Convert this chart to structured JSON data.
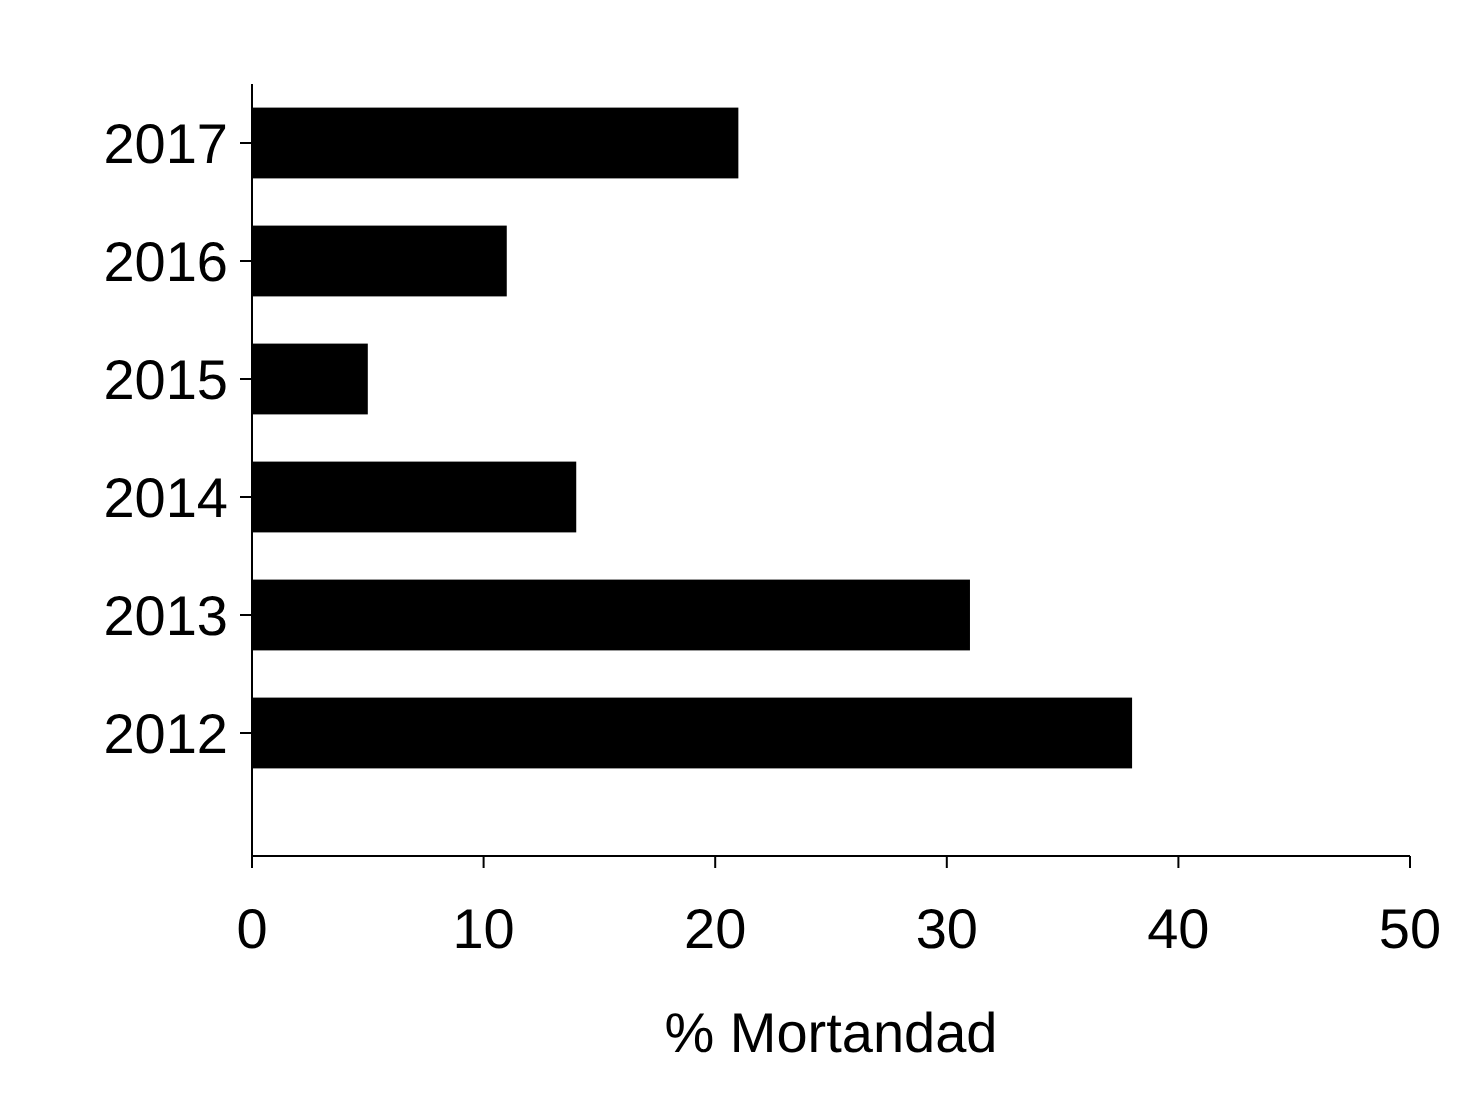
{
  "chart_data": {
    "type": "bar",
    "orientation": "horizontal",
    "xlabel": "% Mortandad",
    "categories": [
      "2017",
      "2016",
      "2015",
      "2014",
      "2013",
      "2012"
    ],
    "values": [
      21,
      11,
      5,
      14,
      31,
      38
    ],
    "color": "#000000",
    "xlim": [
      0,
      50
    ],
    "xticks": [
      0,
      10,
      20,
      30,
      40,
      50
    ],
    "grid": false
  }
}
